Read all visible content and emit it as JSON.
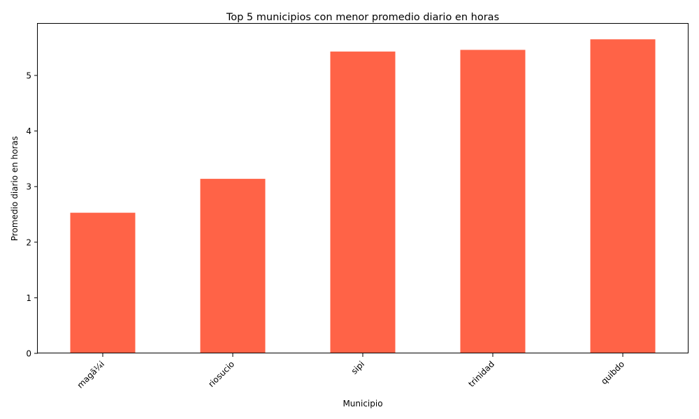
{
  "chart_data": {
    "type": "bar",
    "title": "Top 5 municipios con menor promedio diario en horas",
    "xlabel": "Municipio",
    "ylabel": "Promedio diario en horas",
    "categories": [
      "magã¼i",
      "riosucio",
      "sipi",
      "trinidad",
      "quibdo"
    ],
    "values": [
      2.53,
      3.14,
      5.43,
      5.46,
      5.65
    ],
    "yticks": [
      "0",
      "1",
      "2",
      "3",
      "4",
      "5"
    ],
    "ylim": [
      0,
      5.93
    ],
    "grid": false,
    "legend": "none",
    "bar_color": "#ff6347"
  }
}
